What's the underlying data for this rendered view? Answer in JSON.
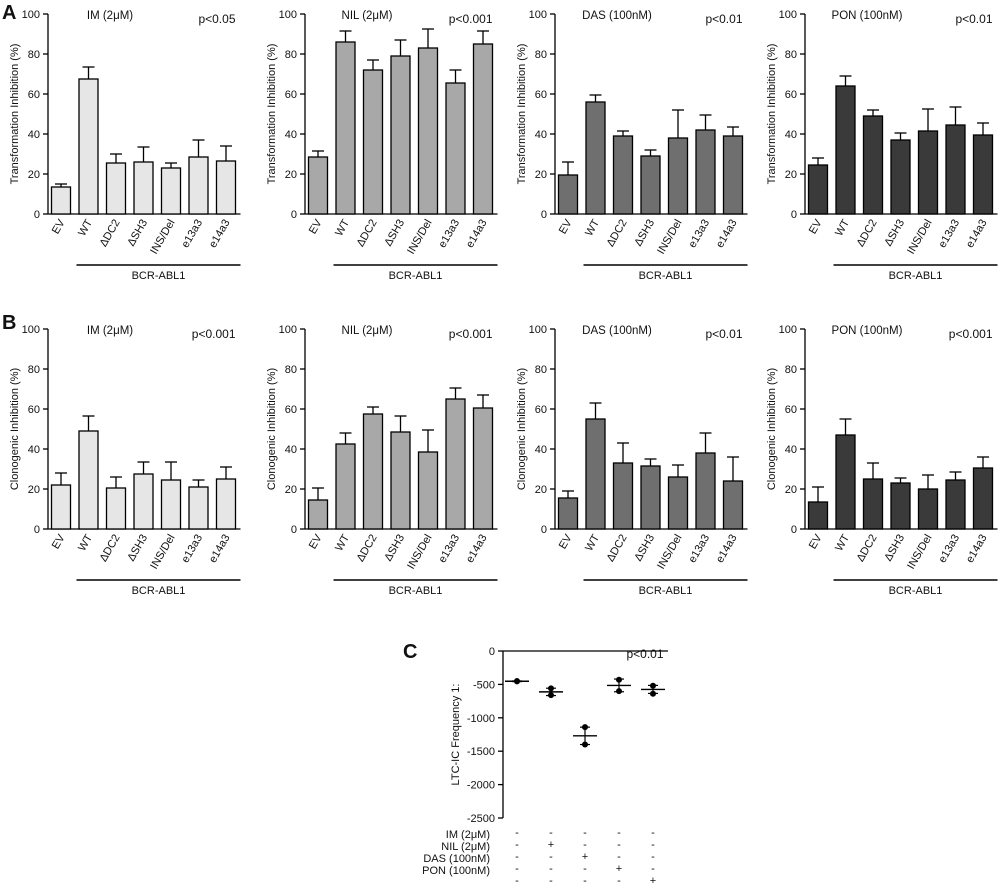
{
  "panels": {
    "A": "A",
    "B": "B",
    "C": "C"
  },
  "chart_data": [
    {
      "type": "bar",
      "row": "A",
      "title": "IM (2μM)",
      "pvalue": "p<0.05",
      "ylabel": "Transformation Inhibition (%)",
      "ylim": [
        0,
        100
      ],
      "yticks": [
        "0",
        "20",
        "40",
        "60",
        "80",
        "100"
      ],
      "categories": [
        "EV",
        "WT",
        "ΔDC2",
        "ΔSH3",
        "INS/Del",
        "e13a3",
        "e14a3"
      ],
      "values": [
        13.5,
        67.5,
        25.5,
        26,
        23,
        28.5,
        26.5
      ],
      "errors": [
        1.5,
        6,
        4.5,
        7.5,
        2.5,
        8.5,
        7.5
      ],
      "group_label": "BCR-ABL1",
      "bar_color": "#e6e6e6"
    },
    {
      "type": "bar",
      "row": "A",
      "title": "NIL (2μM)",
      "pvalue": "p<0.001",
      "ylabel": "Transformation Inhibition (%)",
      "ylim": [
        0,
        100
      ],
      "yticks": [
        "0",
        "20",
        "40",
        "60",
        "80",
        "100"
      ],
      "categories": [
        "EV",
        "WT",
        "ΔDC2",
        "ΔSH3",
        "INS/Del",
        "e13a3",
        "e14a3"
      ],
      "values": [
        28.5,
        86,
        72,
        79,
        83,
        65.5,
        85
      ],
      "errors": [
        3,
        5.5,
        5,
        8,
        9.5,
        6.5,
        6.5
      ],
      "group_label": "BCR-ABL1",
      "bar_color": "#a8a8a8"
    },
    {
      "type": "bar",
      "row": "A",
      "title": "DAS (100nM)",
      "pvalue": "p<0.01",
      "ylabel": "Transformation Inhibition (%)",
      "ylim": [
        0,
        100
      ],
      "yticks": [
        "0",
        "20",
        "40",
        "60",
        "80",
        "100"
      ],
      "categories": [
        "EV",
        "WT",
        "ΔDC2",
        "ΔSH3",
        "INS/Del",
        "e13a3",
        "e14a3"
      ],
      "values": [
        19.5,
        56,
        39,
        29,
        38,
        42,
        39
      ],
      "errors": [
        6.5,
        3.5,
        2.5,
        3,
        14,
        7.5,
        4.5
      ],
      "group_label": "BCR-ABL1",
      "bar_color": "#6f6f6f"
    },
    {
      "type": "bar",
      "row": "A",
      "title": "PON (100nM)",
      "pvalue": "p<0.01",
      "ylabel": "Transformation Inhibition (%)",
      "ylim": [
        0,
        100
      ],
      "yticks": [
        "0",
        "20",
        "40",
        "60",
        "80",
        "100"
      ],
      "categories": [
        "EV",
        "WT",
        "ΔDC2",
        "ΔSH3",
        "INS/Del",
        "e13a3",
        "e14a3"
      ],
      "values": [
        24.5,
        64,
        49,
        37,
        41.5,
        44.5,
        39.5
      ],
      "errors": [
        3.5,
        5,
        3,
        3.5,
        11,
        9,
        6
      ],
      "group_label": "BCR-ABL1",
      "bar_color": "#3a3a3a"
    },
    {
      "type": "bar",
      "row": "B",
      "title": "IM (2μM)",
      "pvalue": "p<0.001",
      "ylabel": "Clonogenic Inhibition (%)",
      "ylim": [
        0,
        100
      ],
      "yticks": [
        "0",
        "20",
        "40",
        "60",
        "80",
        "100"
      ],
      "categories": [
        "EV",
        "WT",
        "ΔDC2",
        "ΔSH3",
        "INS/Del",
        "e13a3",
        "e14a3"
      ],
      "values": [
        22,
        49,
        20.5,
        27.5,
        24.5,
        21,
        25
      ],
      "errors": [
        6,
        7.5,
        5.5,
        6,
        9,
        3.5,
        6
      ],
      "group_label": "BCR-ABL1",
      "bar_color": "#e6e6e6"
    },
    {
      "type": "bar",
      "row": "B",
      "title": "NIL (2μM)",
      "pvalue": "p<0.001",
      "ylabel": "Clonogenic Inhibition (%)",
      "ylim": [
        0,
        100
      ],
      "yticks": [
        "0",
        "20",
        "40",
        "60",
        "80",
        "100"
      ],
      "categories": [
        "EV",
        "WT",
        "ΔDC2",
        "ΔSH3",
        "INS/Del",
        "e13a3",
        "e14a3"
      ],
      "values": [
        14.5,
        42.5,
        57.5,
        48.5,
        38.5,
        65,
        60.5
      ],
      "errors": [
        6,
        5.5,
        3.5,
        8,
        11,
        5.5,
        6.5
      ],
      "group_label": "BCR-ABL1",
      "bar_color": "#a8a8a8"
    },
    {
      "type": "bar",
      "row": "B",
      "title": "DAS (100nM)",
      "pvalue": "p<0.01",
      "ylabel": "Clonogenic Inhibition (%)",
      "ylim": [
        0,
        100
      ],
      "yticks": [
        "0",
        "20",
        "40",
        "60",
        "80",
        "100"
      ],
      "categories": [
        "EV",
        "WT",
        "ΔDC2",
        "ΔSH3",
        "INS/Del",
        "e13a3",
        "e14a3"
      ],
      "values": [
        15.5,
        55,
        33,
        31.5,
        26,
        38,
        24
      ],
      "errors": [
        3.5,
        8,
        10,
        3.5,
        6,
        10,
        12
      ],
      "group_label": "BCR-ABL1",
      "bar_color": "#6f6f6f"
    },
    {
      "type": "bar",
      "row": "B",
      "title": "PON (100nM)",
      "pvalue": "p<0.001",
      "ylabel": "Clonogenic Inhibition (%)",
      "ylim": [
        0,
        100
      ],
      "yticks": [
        "0",
        "20",
        "40",
        "60",
        "80",
        "100"
      ],
      "categories": [
        "EV",
        "WT",
        "ΔDC2",
        "ΔSH3",
        "INS/Del",
        "e13a3",
        "e14a3"
      ],
      "values": [
        13.5,
        47,
        25,
        23,
        20,
        24.5,
        30.5
      ],
      "errors": [
        7.5,
        8,
        8,
        2.5,
        7,
        4,
        5.5
      ],
      "group_label": "BCR-ABL1",
      "bar_color": "#3a3a3a"
    },
    {
      "type": "scatter",
      "row": "C",
      "pvalue": "p<0.01",
      "ylabel": "LTC-IC Frequency 1:",
      "ylim": [
        -2500,
        0
      ],
      "yticks": [
        "0",
        "-500",
        "-1000",
        "-1500",
        "-2000",
        "-2500"
      ],
      "ytick_values": [
        0,
        -500,
        -1000,
        -1500,
        -2000,
        -2500
      ],
      "groups": [
        {
          "points": [
            -450,
            -455
          ],
          "mean": -453,
          "err": 5
        },
        {
          "points": [
            -560,
            -660
          ],
          "mean": -612,
          "err": 55
        },
        {
          "points": [
            -1140,
            -1400
          ],
          "mean": -1270,
          "err": 130
        },
        {
          "points": [
            -430,
            -600
          ],
          "mean": -515,
          "err": 95
        },
        {
          "points": [
            -520,
            -640
          ],
          "mean": -575,
          "err": 60
        }
      ],
      "condition_labels": [
        "IM (2μM)",
        "NIL (2μM)",
        "DAS (100nM)",
        "PON (100nM)"
      ],
      "condition_matrix": [
        [
          "-",
          "+",
          "-",
          "-",
          "-"
        ],
        [
          "-",
          "-",
          "+",
          "-",
          "-"
        ],
        [
          "-",
          "-",
          "-",
          "+",
          "-"
        ],
        [
          "-",
          "-",
          "-",
          "-",
          "+"
        ]
      ],
      "top_signs": [
        "-",
        "-",
        "-",
        "-",
        "-"
      ]
    }
  ]
}
